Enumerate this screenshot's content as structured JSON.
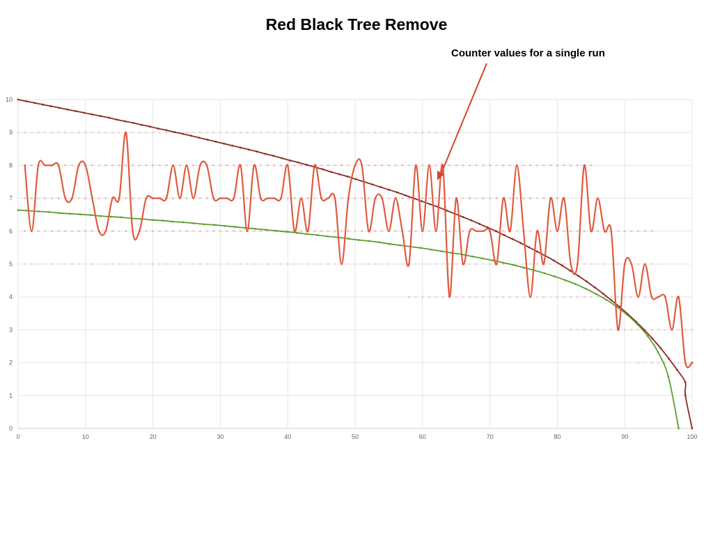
{
  "chart_data": {
    "type": "line",
    "title": "Red Black Tree Remove",
    "annotation": "Counter values for a single run",
    "xlim": [
      0,
      100
    ],
    "ylim": [
      0,
      10
    ],
    "grid": true,
    "xticks": [
      "0",
      "10",
      "20",
      "30",
      "40",
      "50",
      "60",
      "70",
      "80",
      "90",
      "100"
    ],
    "yticks": [
      "0",
      "1",
      "2",
      "3",
      "4",
      "5",
      "6",
      "7",
      "8",
      "9",
      "10"
    ],
    "colors": {
      "single_run": "#e05a3f",
      "upper_curve": "#8b2b22",
      "lower_curve": "#5b9e2e",
      "scatter": "#e05a3f",
      "grid": "#e6e6e6",
      "annotation_arrow": "#d9422a"
    },
    "series": [
      {
        "values": [
          8,
          6,
          8,
          8,
          8,
          8,
          7,
          7,
          8,
          8,
          7,
          6,
          6,
          7,
          7,
          9,
          6,
          6,
          7,
          7,
          7,
          7,
          8,
          7,
          8,
          7,
          8,
          8,
          7,
          7,
          7,
          7,
          8,
          6,
          8,
          7,
          7,
          7,
          7,
          8,
          6,
          7,
          6,
          8,
          7,
          7,
          7,
          5,
          7,
          8,
          8,
          6,
          7,
          7,
          6,
          7,
          6,
          5,
          8,
          6,
          8,
          6,
          8,
          4,
          7,
          5,
          6,
          6,
          6,
          6,
          5,
          7,
          6,
          8,
          6,
          4,
          6,
          5,
          7,
          6,
          7,
          5,
          5,
          8,
          6,
          7,
          6,
          6,
          3,
          5,
          5,
          4,
          5,
          4,
          4,
          4,
          3,
          4,
          2,
          2,
          2
        ]
      },
      {
        "values": [
          10.0,
          9.95,
          9.9,
          9.85,
          9.8,
          9.75,
          9.7,
          9.65,
          9.6,
          9.55,
          9.5,
          9.45,
          9.39,
          9.34,
          9.29,
          9.23,
          9.18,
          9.12,
          9.07,
          9.01,
          8.96,
          8.9,
          8.84,
          8.78,
          8.72,
          8.66,
          8.6,
          8.54,
          8.48,
          8.42,
          8.35,
          8.29,
          8.22,
          8.15,
          8.09,
          8.02,
          7.95,
          7.88,
          7.8,
          7.73,
          7.66,
          7.58,
          7.5,
          7.42,
          7.34,
          7.26,
          7.18,
          7.09,
          7.0,
          6.91,
          6.82,
          6.73,
          6.63,
          6.53,
          6.43,
          6.33,
          6.22,
          6.11,
          6.0,
          5.88,
          5.76,
          5.64,
          5.51,
          5.38,
          5.25,
          5.11,
          4.96,
          4.8,
          4.64,
          4.47,
          4.29,
          4.1,
          3.9,
          3.7,
          3.48,
          3.25,
          3.0,
          2.73,
          2.44,
          2.12,
          1.78,
          1.4,
          1.0
        ]
      },
      {
        "values": [
          6.64,
          6.62,
          6.6,
          6.58,
          6.55,
          6.53,
          6.51,
          6.49,
          6.46,
          6.44,
          6.42,
          6.39,
          6.37,
          6.34,
          6.32,
          6.29,
          6.27,
          6.24,
          6.21,
          6.19,
          6.16,
          6.13,
          6.1,
          6.07,
          6.04,
          6.01,
          5.98,
          5.95,
          5.91,
          5.88,
          5.84,
          5.81,
          5.77,
          5.73,
          5.7,
          5.66,
          5.61,
          5.57,
          5.53,
          5.49,
          5.44,
          5.39,
          5.34,
          5.29,
          5.23,
          5.17,
          5.11,
          5.04,
          4.97,
          4.89,
          4.81,
          4.72,
          4.62,
          4.51,
          4.39,
          4.25,
          4.09,
          3.91,
          3.7,
          3.46,
          3.17,
          2.81,
          2.32,
          1.58,
          0.0
        ]
      }
    ]
  }
}
